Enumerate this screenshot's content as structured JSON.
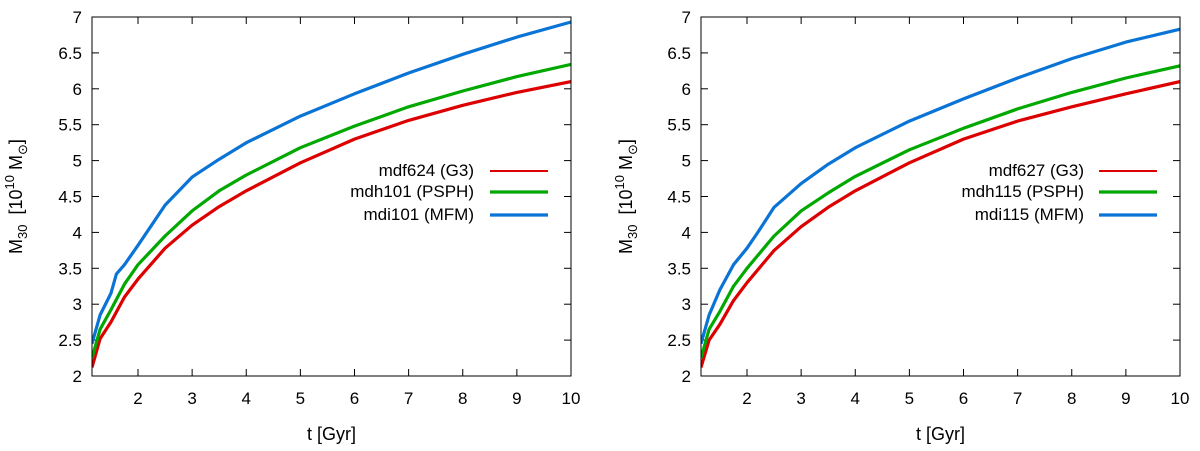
{
  "chart_data": [
    {
      "type": "line",
      "title": "",
      "xlabel": "t [Gyr]",
      "ylabel": {
        "base": "M",
        "sub": "30",
        "unit_prefix": "[10",
        "unit_exp": "10",
        "unit_mid": " M",
        "unit_sub": "⊙",
        "unit_suffix": "]"
      },
      "xlim": [
        1.15,
        10
      ],
      "ylim": [
        2,
        7
      ],
      "xticks": [
        "2",
        "3",
        "4",
        "5",
        "6",
        "7",
        "8",
        "9",
        "10"
      ],
      "yticks": [
        "2",
        "2.5",
        "3",
        "3.5",
        "4",
        "4.5",
        "5",
        "5.5",
        "6",
        "6.5",
        "7"
      ],
      "legend_position": "center-right",
      "series": [
        {
          "name": "mdf624 (G3)",
          "color": "#dd0000",
          "x": [
            1.15,
            1.3,
            1.5,
            1.75,
            2,
            2.5,
            3,
            3.5,
            4,
            5,
            6,
            7,
            8,
            9,
            10
          ],
          "y": [
            2.12,
            2.52,
            2.75,
            3.1,
            3.35,
            3.78,
            4.1,
            4.36,
            4.58,
            4.97,
            5.3,
            5.56,
            5.77,
            5.95,
            6.1
          ]
        },
        {
          "name": "mdh101 (PSPH)",
          "color": "#00a800",
          "x": [
            1.15,
            1.3,
            1.5,
            1.75,
            2,
            2.5,
            3,
            3.5,
            4,
            5,
            6,
            7,
            8,
            9,
            10
          ],
          "y": [
            2.25,
            2.65,
            2.92,
            3.28,
            3.55,
            3.95,
            4.3,
            4.58,
            4.8,
            5.18,
            5.48,
            5.75,
            5.97,
            6.17,
            6.34
          ]
        },
        {
          "name": "mdi101 (MFM)",
          "color": "#0a74d6",
          "x": [
            1.15,
            1.3,
            1.5,
            1.6,
            1.75,
            2,
            2.5,
            3,
            3.5,
            4,
            5,
            6,
            7,
            8,
            9,
            10
          ],
          "y": [
            2.45,
            2.85,
            3.15,
            3.42,
            3.55,
            3.82,
            4.38,
            4.77,
            5.02,
            5.25,
            5.62,
            5.93,
            6.22,
            6.48,
            6.72,
            6.93
          ]
        }
      ]
    },
    {
      "type": "line",
      "title": "",
      "xlabel": "t [Gyr]",
      "ylabel": {
        "base": "M",
        "sub": "30",
        "unit_prefix": "[10",
        "unit_exp": "10",
        "unit_mid": " M",
        "unit_sub": "⊙",
        "unit_suffix": "]"
      },
      "xlim": [
        1.15,
        10
      ],
      "ylim": [
        2,
        7
      ],
      "xticks": [
        "2",
        "3",
        "4",
        "5",
        "6",
        "7",
        "8",
        "9",
        "10"
      ],
      "yticks": [
        "2",
        "2.5",
        "3",
        "3.5",
        "4",
        "4.5",
        "5",
        "5.5",
        "6",
        "6.5",
        "7"
      ],
      "legend_position": "center-right",
      "series": [
        {
          "name": "mdf627 (G3)",
          "color": "#dd0000",
          "x": [
            1.15,
            1.3,
            1.5,
            1.75,
            2,
            2.5,
            3,
            3.5,
            4,
            5,
            6,
            7,
            8,
            9,
            10
          ],
          "y": [
            2.12,
            2.5,
            2.72,
            3.05,
            3.3,
            3.75,
            4.08,
            4.35,
            4.58,
            4.97,
            5.3,
            5.55,
            5.75,
            5.93,
            6.1
          ]
        },
        {
          "name": "mdh115 (PSPH)",
          "color": "#00a800",
          "x": [
            1.15,
            1.3,
            1.5,
            1.75,
            2,
            2.5,
            3,
            3.5,
            4,
            5,
            6,
            7,
            8,
            9,
            10
          ],
          "y": [
            2.25,
            2.65,
            2.9,
            3.25,
            3.5,
            3.95,
            4.3,
            4.55,
            4.78,
            5.15,
            5.45,
            5.72,
            5.95,
            6.15,
            6.32
          ]
        },
        {
          "name": "mdi115 (MFM)",
          "color": "#0a74d6",
          "x": [
            1.15,
            1.3,
            1.5,
            1.75,
            2,
            2.2,
            2.5,
            3,
            3.5,
            4,
            5,
            6,
            7,
            8,
            9,
            10
          ],
          "y": [
            2.45,
            2.85,
            3.2,
            3.55,
            3.78,
            4.0,
            4.35,
            4.68,
            4.95,
            5.18,
            5.55,
            5.86,
            6.15,
            6.42,
            6.65,
            6.83
          ]
        }
      ]
    }
  ]
}
